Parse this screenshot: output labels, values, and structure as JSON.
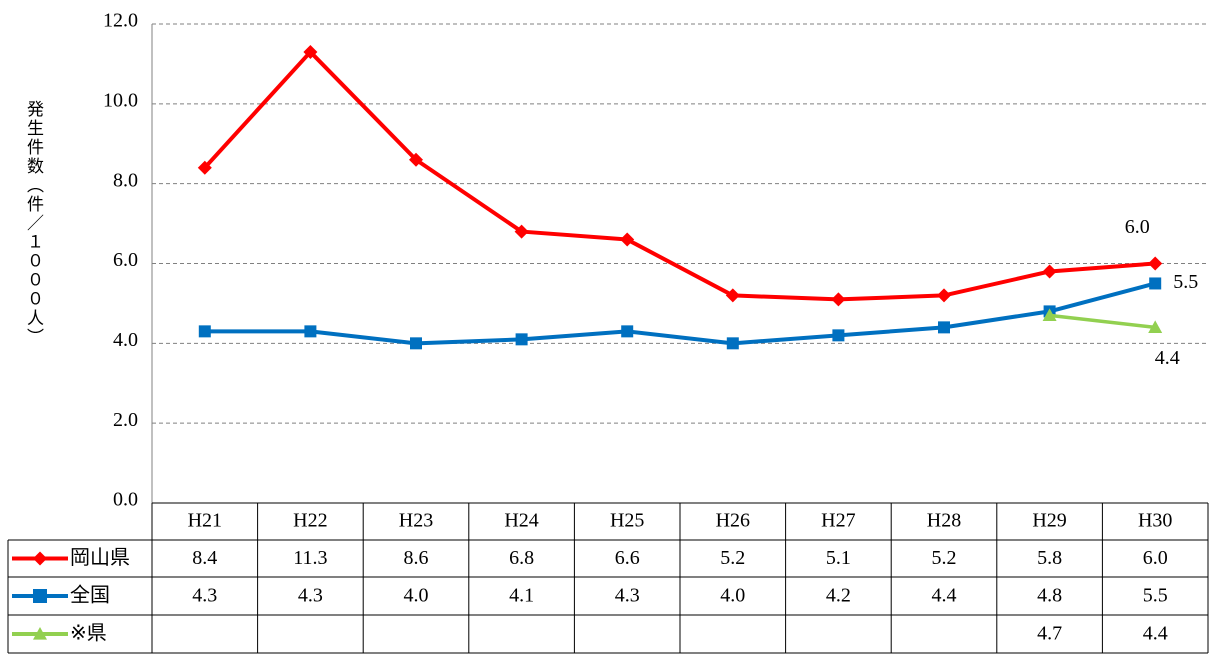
{
  "chart_data": {
    "type": "line",
    "ylabel": "発生件数（件／１０００人）",
    "categories": [
      "H21",
      "H22",
      "H23",
      "H24",
      "H25",
      "H26",
      "H27",
      "H28",
      "H29",
      "H30"
    ],
    "series": [
      {
        "name": "岡山県",
        "color": "#ff0000",
        "marker": "diamond",
        "values": [
          8.4,
          11.3,
          8.6,
          6.8,
          6.6,
          5.2,
          5.1,
          5.2,
          5.8,
          6
        ],
        "value_labels": [
          "8.4",
          "11.3",
          "8.6",
          "6.8",
          "6.6",
          "5.2",
          "5.1",
          "5.2",
          "5.8",
          "6.0"
        ]
      },
      {
        "name": "全国",
        "color": "#0070c0",
        "marker": "square",
        "values": [
          4.3,
          4.3,
          4,
          4.1,
          4.3,
          4,
          4.2,
          4.4,
          4.8,
          5.5
        ],
        "value_labels": [
          "4.3",
          "4.3",
          "4.0",
          "4.1",
          "4.3",
          "4.0",
          "4.2",
          "4.4",
          "4.8",
          "5.5"
        ]
      },
      {
        "name": "※県",
        "color": "#92d050",
        "marker": "triangle",
        "values": [
          null,
          null,
          null,
          null,
          null,
          null,
          null,
          null,
          4.7,
          4.4
        ],
        "value_labels": [
          null,
          null,
          null,
          null,
          null,
          null,
          null,
          null,
          "4.7",
          "4.4"
        ]
      }
    ],
    "ylim": [
      0,
      12
    ],
    "yticks": [
      {
        "value": 0,
        "label": "0.0"
      },
      {
        "value": 2,
        "label": "2.0"
      },
      {
        "value": 4,
        "label": "4.0"
      },
      {
        "value": 6,
        "label": "6.0"
      },
      {
        "value": 8,
        "label": "8.0"
      },
      {
        "value": 10,
        "label": "10.0"
      },
      {
        "value": 12,
        "label": "12.0"
      }
    ],
    "grid": true
  }
}
